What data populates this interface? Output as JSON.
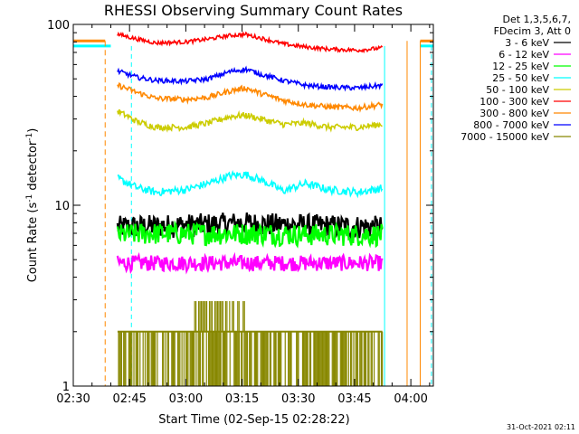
{
  "chart_data": {
    "type": "line",
    "title": "RHESSI Observing Summary Count Rates",
    "xlabel": "Start Time (02-Sep-15 02:28:22)",
    "ylabel_main": "Count Rate (s",
    "ylabel_sup": "-1",
    "ylabel_tail": " detector",
    "ylabel_end": ")",
    "yscale": "log",
    "ylim": [
      1,
      100
    ],
    "xlim_min": [
      150.0,
      246.0
    ],
    "x_ticks": [
      {
        "t": 150,
        "label": "02:30"
      },
      {
        "t": 165,
        "label": "02:45"
      },
      {
        "t": 180,
        "label": "03:00"
      },
      {
        "t": 195,
        "label": "03:15"
      },
      {
        "t": 210,
        "label": "03:30"
      },
      {
        "t": 225,
        "label": "03:45"
      },
      {
        "t": 240,
        "label": "04:00"
      }
    ],
    "y_ticks": [
      {
        "v": 1,
        "label": "1"
      },
      {
        "v": 10,
        "label": "10"
      },
      {
        "v": 100,
        "label": "100"
      }
    ],
    "legend_header": [
      "Det 1,3,5,6,7,",
      "FDecim 3, Att 0"
    ],
    "legend_placement": "right",
    "date_stamp": "31-Oct-2021 02:11",
    "series": [
      {
        "name": "3 - 6 keV",
        "color": "#000000",
        "x": [
          162,
          170,
          180,
          190,
          195,
          200,
          210,
          220,
          232
        ],
        "y": [
          7.6,
          7.7,
          7.8,
          7.9,
          8.0,
          7.9,
          7.8,
          7.7,
          7.6
        ],
        "noise": 0.15
      },
      {
        "name": "6 - 12 keV",
        "color": "#ff00ff",
        "x": [
          162,
          170,
          180,
          190,
          195,
          200,
          210,
          220,
          232
        ],
        "y": [
          4.8,
          4.8,
          4.8,
          4.8,
          4.8,
          4.8,
          4.8,
          4.8,
          4.8
        ],
        "noise": 0.1
      },
      {
        "name": "12 - 25 keV",
        "color": "#00ff00",
        "x": [
          162,
          170,
          180,
          190,
          195,
          200,
          210,
          220,
          232
        ],
        "y": [
          6.9,
          7.0,
          7.0,
          7.0,
          7.0,
          7.0,
          6.9,
          6.9,
          6.9
        ],
        "noise": 0.14
      },
      {
        "name": "25 - 50 keV",
        "color": "#00ffff",
        "x": [
          162,
          167,
          172,
          180,
          186,
          192,
          196,
          200,
          206,
          212,
          218,
          226,
          232
        ],
        "y": [
          14.0,
          12.5,
          11.8,
          12.2,
          13.2,
          14.6,
          14.8,
          13.8,
          12.0,
          13.2,
          12.2,
          11.8,
          12.4
        ],
        "noise": 0.05
      },
      {
        "name": "50 - 100 keV",
        "color": "#cccc00",
        "x": [
          162,
          167,
          172,
          180,
          186,
          192,
          196,
          200,
          206,
          212,
          218,
          226,
          232
        ],
        "y": [
          33,
          29,
          27,
          27,
          28.5,
          31,
          31.5,
          30,
          28,
          28.5,
          27,
          27,
          28
        ],
        "noise": 0.04
      },
      {
        "name": "100 - 300 keV",
        "color": "#ff0000",
        "x": [
          162,
          167,
          172,
          180,
          186,
          192,
          196,
          200,
          206,
          212,
          218,
          226,
          232
        ],
        "y": [
          88,
          83,
          79,
          80,
          83,
          87,
          88,
          84,
          78,
          75,
          73,
          72,
          74
        ],
        "noise": 0.025
      },
      {
        "name": "300 - 800 keV",
        "color": "#ff8800",
        "x": [
          162,
          167,
          172,
          180,
          186,
          192,
          196,
          200,
          206,
          212,
          218,
          226,
          232
        ],
        "y": [
          46,
          42,
          39,
          38.5,
          39.5,
          43,
          44.5,
          41.5,
          38,
          36,
          35,
          34.5,
          36
        ],
        "noise": 0.035
      },
      {
        "name": "800 - 7000 keV",
        "color": "#0000ff",
        "x": [
          162,
          167,
          172,
          180,
          186,
          192,
          196,
          200,
          206,
          212,
          218,
          226,
          232
        ],
        "y": [
          55,
          51,
          49,
          48.5,
          50,
          55,
          56.5,
          53,
          49,
          46,
          45,
          44.5,
          46
        ],
        "noise": 0.03
      },
      {
        "name": "7000 - 15000 keV",
        "color": "#888800",
        "x": [
          162,
          170,
          180,
          190,
          195,
          200,
          210,
          220,
          232
        ],
        "y": [
          2.0,
          2.0,
          2.0,
          2.0,
          2.0,
          2.0,
          2.0,
          2.0,
          2.0
        ],
        "noise": 0
      }
    ],
    "annotations": {
      "orange_step_level": 81,
      "cyan_step_level": 76,
      "left_edge_t": 150.0,
      "orange_gap_t": [
        158.5,
        242.5
      ],
      "cyan_gap_t": [
        160.0,
        242.5
      ],
      "orange_dashed_t": [
        158.5,
        242.5
      ],
      "cyan_dashed_t": [
        165.5,
        245.5
      ],
      "right_solid_t": [
        233.0,
        239.0
      ]
    }
  }
}
